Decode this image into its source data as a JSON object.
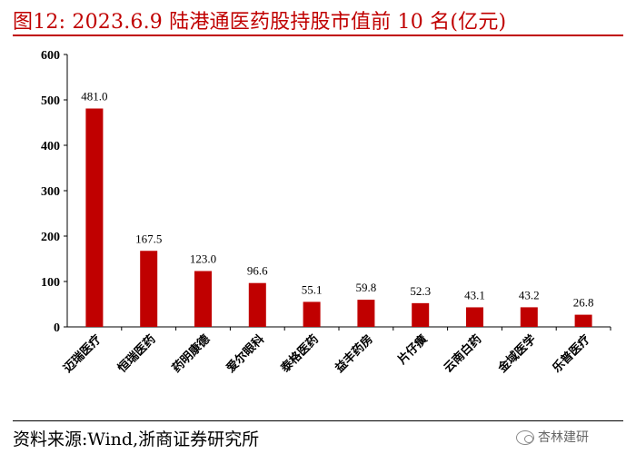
{
  "header": {
    "title": "图12:  2023.6.9 陆港通医药股持股市值前 10 名(亿元)"
  },
  "chart_data": {
    "type": "bar",
    "categories": [
      "迈瑞医疗",
      "恒瑞医药",
      "药明康德",
      "爱尔眼科",
      "泰格医药",
      "益丰药房",
      "片仔癀",
      "云南白药",
      "金域医学",
      "乐普医疗"
    ],
    "values": [
      481.0,
      167.5,
      123.0,
      96.6,
      55.1,
      59.8,
      52.3,
      43.1,
      43.2,
      26.8
    ],
    "value_labels": [
      "481.0",
      "167.5",
      "123.0",
      "96.6",
      "55.1",
      "59.8",
      "52.3",
      "43.1",
      "43.2",
      "26.8"
    ],
    "yticks": [
      0,
      100,
      200,
      300,
      400,
      500,
      600
    ],
    "ylim": [
      0,
      600
    ],
    "bar_color": "#c00000",
    "grid": false,
    "legend": "none"
  },
  "footer": {
    "source": "资料来源:Wind,浙商证券研究所",
    "watermark": "杏林建研"
  }
}
